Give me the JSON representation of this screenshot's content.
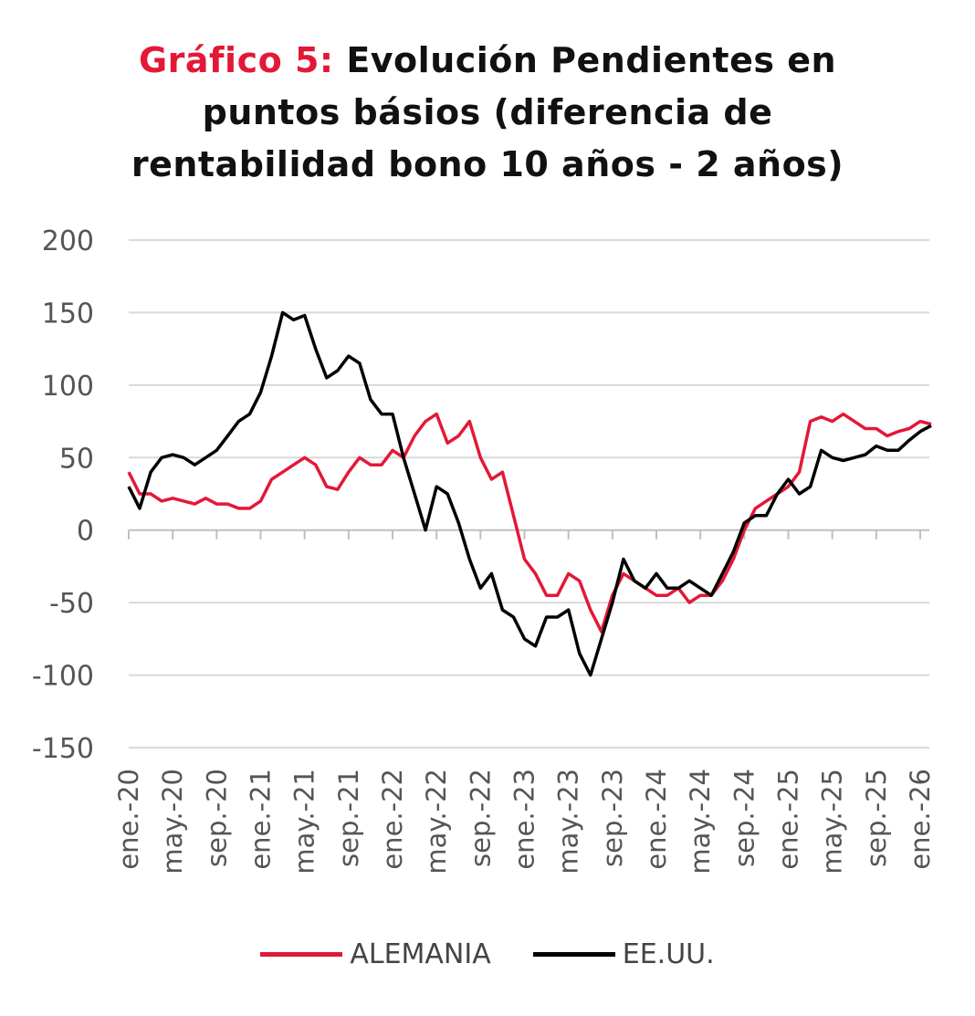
{
  "chart_data": {
    "type": "line",
    "title_prefix": "Gráfico 5:",
    "title_lines": [
      "Evolución Pendientes en",
      "puntos básios (diferencia de",
      "rentabilidad bono 10 años - 2 años)"
    ],
    "xlabel": "",
    "ylabel": "",
    "ylim": [
      -150,
      200
    ],
    "yticks": [
      200,
      150,
      100,
      50,
      0,
      -50,
      -100,
      -150
    ],
    "ytick_labels": [
      "200",
      "150",
      "100",
      "50",
      "0",
      "-50",
      "-100",
      "-150"
    ],
    "xtick_labels": [
      "ene.-20",
      "may.-20",
      "sep.-20",
      "ene.-21",
      "may.-21",
      "sep.-21",
      "ene.-22",
      "may.-22",
      "sep.-22",
      "ene.-23",
      "may.-23",
      "sep.-23",
      "ene.-24",
      "may.-24",
      "sep.-24",
      "ene.-25",
      "may.-25",
      "sep.-25",
      "ene.-26"
    ],
    "x_start": "2020-01",
    "x_frequency": "monthly",
    "grid": true,
    "legend_position": "bottom",
    "series": [
      {
        "name": "ALEMANIA",
        "color": "#e31837",
        "values": [
          40,
          25,
          25,
          20,
          22,
          20,
          18,
          22,
          18,
          18,
          15,
          15,
          20,
          35,
          40,
          45,
          50,
          45,
          30,
          28,
          40,
          50,
          45,
          45,
          55,
          50,
          65,
          75,
          80,
          60,
          65,
          75,
          50,
          35,
          40,
          10,
          -20,
          -30,
          -45,
          -45,
          -30,
          -35,
          -55,
          -70,
          -45,
          -30,
          -35,
          -40,
          -45,
          -45,
          -40,
          -50,
          -45,
          -45,
          -35,
          -20,
          0,
          15,
          20,
          25,
          30,
          40,
          75,
          78,
          75,
          80,
          75,
          70,
          70,
          65,
          68,
          70,
          75,
          73
        ]
      },
      {
        "name": "EE.UU.",
        "color": "#000000",
        "values": [
          30,
          15,
          40,
          50,
          52,
          50,
          45,
          50,
          55,
          65,
          75,
          80,
          95,
          120,
          150,
          145,
          148,
          125,
          105,
          110,
          120,
          115,
          90,
          80,
          80,
          50,
          25,
          0,
          30,
          25,
          5,
          -20,
          -40,
          -30,
          -55,
          -60,
          -75,
          -80,
          -60,
          -60,
          -55,
          -85,
          -100,
          -75,
          -50,
          -20,
          -35,
          -40,
          -30,
          -40,
          -40,
          -35,
          -40,
          -45,
          -30,
          -15,
          5,
          10,
          10,
          25,
          35,
          25,
          30,
          55,
          50,
          48,
          50,
          52,
          58,
          55,
          55,
          62,
          68,
          72
        ]
      }
    ]
  }
}
